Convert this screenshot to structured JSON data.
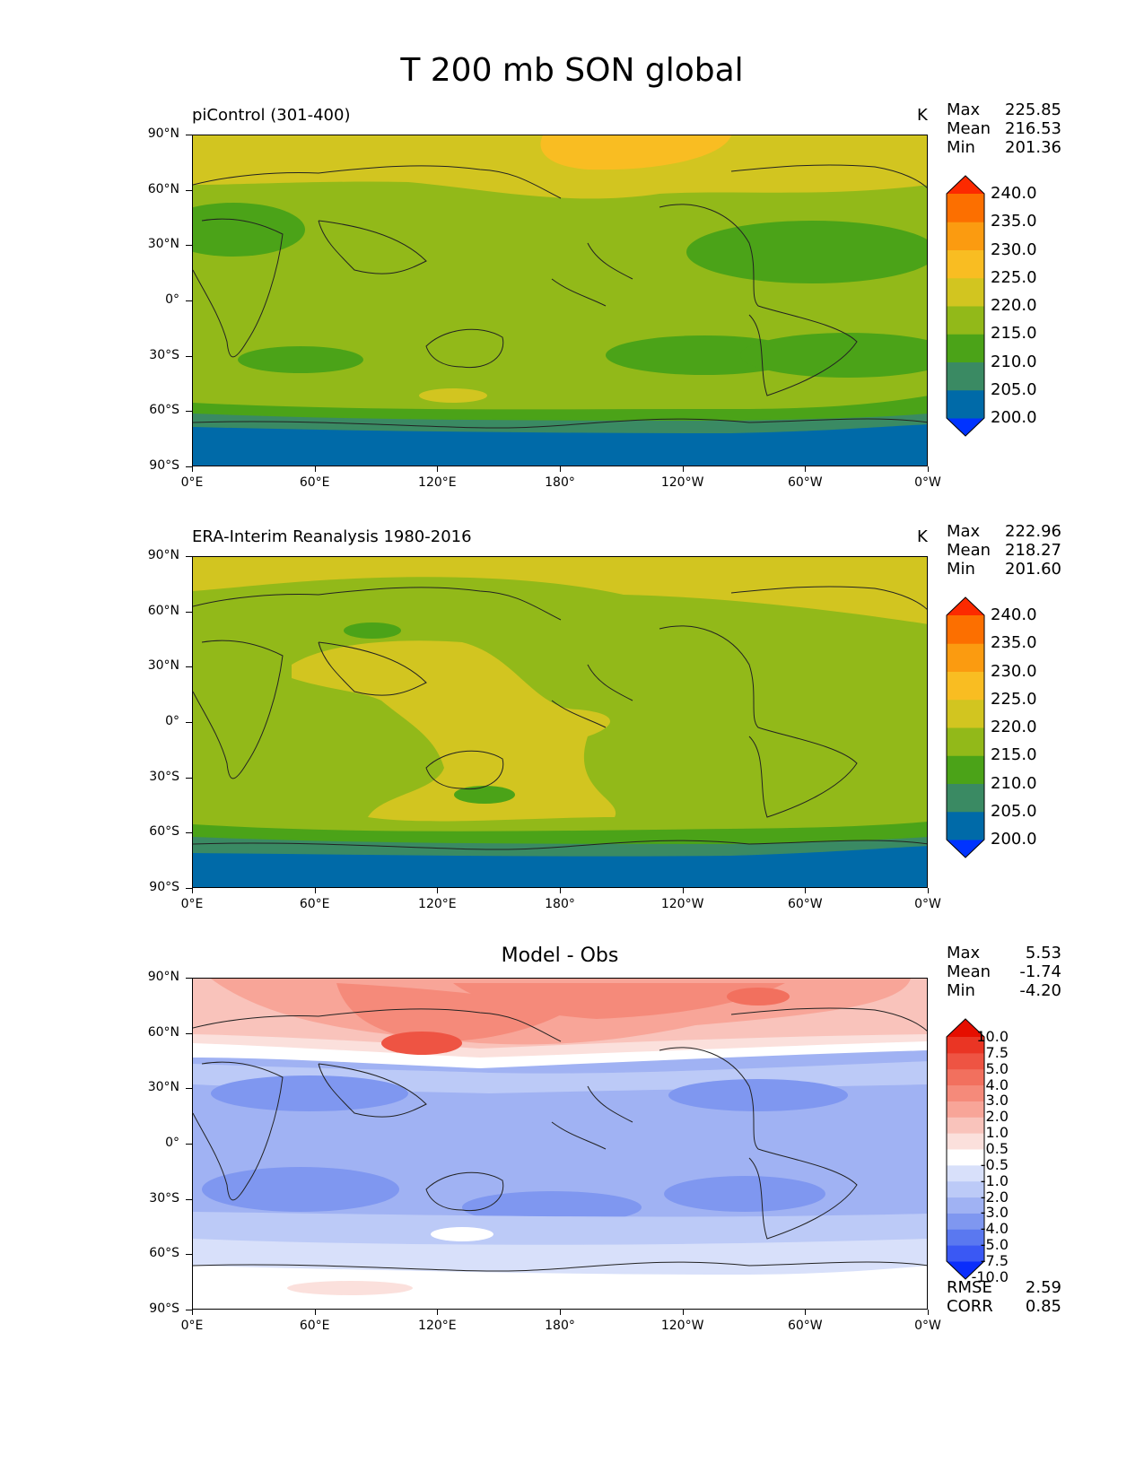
{
  "figure": {
    "title": "T 200 mb SON global"
  },
  "axes": {
    "y_ticks": [
      "90°N",
      "60°N",
      "30°N",
      "0°",
      "30°S",
      "60°S",
      "90°S"
    ],
    "x_ticks": [
      "0°E",
      "60°E",
      "120°E",
      "180°",
      "120°W",
      "60°W",
      "0°W"
    ]
  },
  "panels": [
    {
      "title": "piControl (301-400)",
      "units": "K",
      "stats": {
        "max_label": "Max",
        "max": "225.85",
        "mean_label": "Mean",
        "mean": "216.53",
        "min_label": "Min",
        "min": "201.36"
      },
      "colorbar_labels": [
        "240.0",
        "235.0",
        "230.0",
        "225.0",
        "220.0",
        "215.0",
        "210.0",
        "205.0",
        "200.0"
      ]
    },
    {
      "title": "ERA-Interim Reanalysis 1980-2016",
      "units": "K",
      "stats": {
        "max_label": "Max",
        "max": "222.96",
        "mean_label": "Mean",
        "mean": "218.27",
        "min_label": "Min",
        "min": "201.60"
      },
      "colorbar_labels": [
        "240.0",
        "235.0",
        "230.0",
        "225.0",
        "220.0",
        "215.0",
        "210.0",
        "205.0",
        "200.0"
      ]
    },
    {
      "title": "Model - Obs",
      "stats": {
        "max_label": "Max",
        "max": "5.53",
        "mean_label": "Mean",
        "mean": "-1.74",
        "min_label": "Min",
        "min": "-4.20"
      },
      "colorbar_labels": [
        "10.0",
        "7.5",
        "5.0",
        "4.0",
        "3.0",
        "2.0",
        "1.0",
        "0.5",
        "-0.5",
        "-1.0",
        "-2.0",
        "-3.0",
        "-4.0",
        "-5.0",
        "-7.5",
        "-10.0"
      ],
      "metrics": {
        "rmse_label": "RMSE",
        "rmse": "2.59",
        "corr_label": "CORR",
        "corr": "0.85"
      }
    }
  ],
  "colors": {
    "abs_levels": [
      "#0033ff",
      "#006aa8",
      "#3a8a63",
      "#4ba318",
      "#92b919",
      "#d2c520",
      "#f9bd22",
      "#fb9b10",
      "#fc6f00",
      "#fc2a00"
    ],
    "diff_levels": [
      "#0a2dfb",
      "#3a58f4",
      "#5a78f0",
      "#7f97f0",
      "#a0b2f3",
      "#bccaf7",
      "#d8e0fa",
      "#ffffff",
      "#fbe0dc",
      "#f9c3bb",
      "#f8a598",
      "#f58a7a",
      "#f2705e",
      "#ee5443",
      "#ea3524",
      "#e60e00"
    ]
  }
}
